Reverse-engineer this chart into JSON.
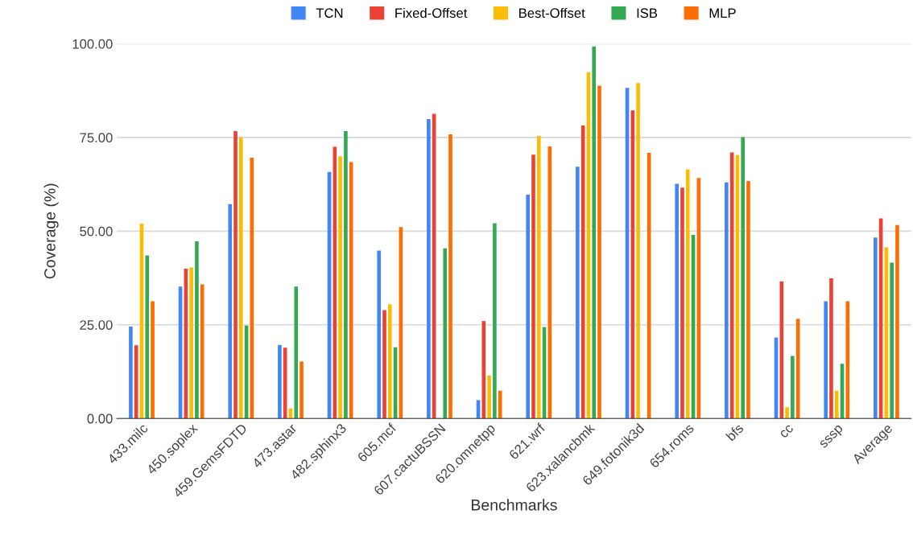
{
  "chart_data": {
    "type": "bar",
    "xlabel": "Benchmarks",
    "ylabel": "Coverage (%)",
    "categories": [
      "433.milc",
      "450.soplex",
      "459.GemsFDTD",
      "473.astar",
      "482.sphinx3",
      "605.mcf",
      "607.cactuBSSN",
      "620.omnetpp",
      "621.wrf",
      "623.xalancbmk",
      "649.fotonik3d",
      "654.roms",
      "bfs",
      "cc",
      "sssp",
      "Average"
    ],
    "series": [
      {
        "name": "TCN",
        "color": "#4285f4",
        "values": [
          24.5,
          35.2,
          57.2,
          19.6,
          65.8,
          44.8,
          79.9,
          4.9,
          59.7,
          67.2,
          88.2,
          62.6,
          63.0,
          21.6,
          31.3,
          48.3
        ]
      },
      {
        "name": "Fixed-Offset",
        "color": "#ea4335",
        "values": [
          19.5,
          40.0,
          76.7,
          18.9,
          72.5,
          28.9,
          81.3,
          26.0,
          70.4,
          78.2,
          82.2,
          61.6,
          71.0,
          36.6,
          37.4,
          53.4
        ]
      },
      {
        "name": "Best-Offset",
        "color": "#fbbc04",
        "values": [
          52.0,
          40.3,
          75.0,
          2.7,
          70.0,
          30.5,
          0,
          11.5,
          75.4,
          92.4,
          89.5,
          66.5,
          70.3,
          3.0,
          7.4,
          45.7
        ]
      },
      {
        "name": "ISB",
        "color": "#34a853",
        "values": [
          43.5,
          47.3,
          24.8,
          35.2,
          76.7,
          19.0,
          45.4,
          52.1,
          24.4,
          99.3,
          0,
          49.0,
          75.1,
          16.7,
          14.6,
          41.6
        ]
      },
      {
        "name": "MLP",
        "color": "#ff6d01",
        "values": [
          31.3,
          35.8,
          69.6,
          15.2,
          68.4,
          51.1,
          75.8,
          7.4,
          72.6,
          88.8,
          70.9,
          64.2,
          63.4,
          26.6,
          31.3,
          51.6
        ]
      }
    ],
    "ylim": [
      0,
      100
    ],
    "yticks": [
      {
        "value": 0,
        "label": "0.00"
      },
      {
        "value": 25,
        "label": "25.00"
      },
      {
        "value": 50,
        "label": "50.00"
      },
      {
        "value": 75,
        "label": "75.00"
      },
      {
        "value": 100,
        "label": "100.00"
      }
    ],
    "grid": "y",
    "legend": "top"
  }
}
